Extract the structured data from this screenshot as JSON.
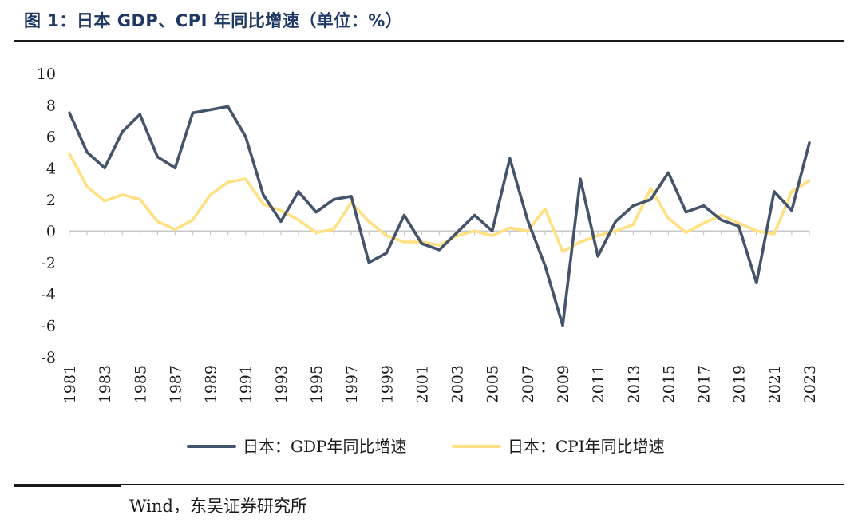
{
  "title": "图 1：日本 GDP、CPI 年同比增速（单位：%）",
  "source": "Wind，东吴证券研究所",
  "chart_data": {
    "type": "line",
    "title": "图 1：日本 GDP、CPI 年同比增速（单位：%）",
    "xlabel": "",
    "ylabel": "",
    "ylim": [
      -8,
      10
    ],
    "yticks": [
      -8,
      -6,
      -4,
      -2,
      0,
      2,
      4,
      6,
      8,
      10
    ],
    "xticks": [
      1981,
      1983,
      1985,
      1987,
      1989,
      1991,
      1993,
      1995,
      1997,
      1999,
      2001,
      2003,
      2005,
      2007,
      2009,
      2011,
      2013,
      2015,
      2017,
      2019,
      2021,
      2023
    ],
    "grid": false,
    "legend_position": "bottom",
    "x": [
      1981,
      1982,
      1983,
      1984,
      1985,
      1986,
      1987,
      1988,
      1989,
      1990,
      1991,
      1992,
      1993,
      1994,
      1995,
      1996,
      1997,
      1998,
      1999,
      2000,
      2001,
      2002,
      2003,
      2004,
      2005,
      2006,
      2007,
      2008,
      2009,
      2010,
      2011,
      2012,
      2013,
      2014,
      2015,
      2016,
      2017,
      2018,
      2019,
      2020,
      2021,
      2022,
      2023
    ],
    "series": [
      {
        "name": "日本：GDP年同比增速",
        "color": "#44546a",
        "values": [
          7.5,
          5.0,
          4.0,
          6.3,
          7.4,
          4.7,
          4.0,
          7.5,
          7.7,
          7.9,
          6.0,
          2.3,
          0.6,
          2.5,
          1.2,
          2.0,
          2.2,
          -2.0,
          -1.4,
          1.0,
          -0.8,
          -1.2,
          -0.1,
          1.0,
          0.0,
          4.6,
          0.7,
          -2.2,
          -6.0,
          3.3,
          -1.6,
          0.6,
          1.6,
          2.0,
          3.7,
          1.2,
          1.6,
          0.7,
          0.3,
          -3.3,
          2.5,
          1.3,
          5.6
        ]
      },
      {
        "name": "日本：CPI年同比增速",
        "color": "#ffe083",
        "values": [
          4.9,
          2.8,
          1.9,
          2.3,
          2.0,
          0.6,
          0.1,
          0.7,
          2.3,
          3.1,
          3.3,
          1.7,
          1.3,
          0.7,
          -0.1,
          0.1,
          1.8,
          0.6,
          -0.3,
          -0.7,
          -0.7,
          -0.9,
          -0.3,
          0.0,
          -0.3,
          0.2,
          0.0,
          1.4,
          -1.3,
          -0.7,
          -0.3,
          0.0,
          0.4,
          2.7,
          0.8,
          -0.1,
          0.5,
          1.0,
          0.5,
          0.0,
          -0.2,
          2.5,
          3.2
        ]
      }
    ]
  }
}
